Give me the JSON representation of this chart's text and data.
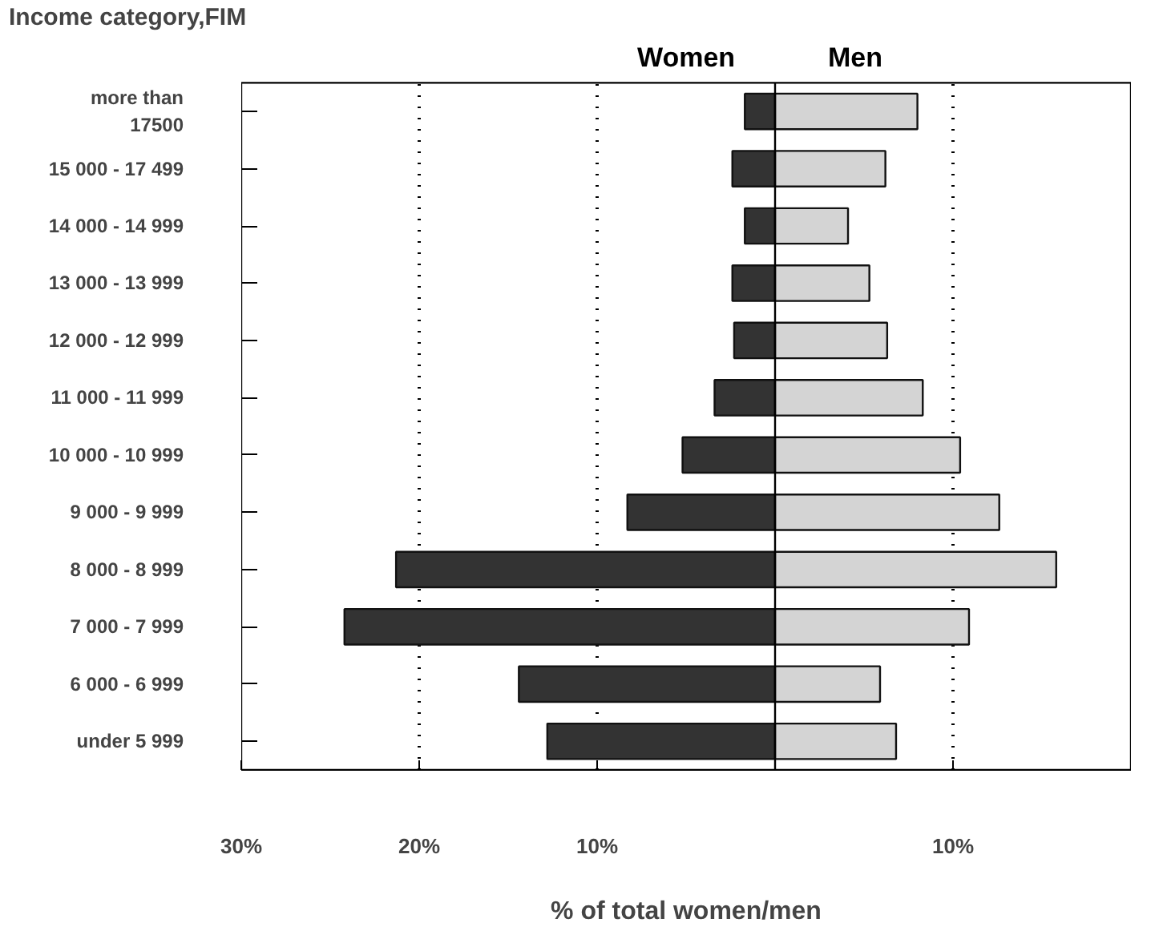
{
  "chart_data": {
    "type": "bar",
    "stacked": true,
    "orientation": "horizontal",
    "ylabel": "Income category,FIM",
    "xlabel": "% of total women/men",
    "categories": [
      "more than\n17500",
      "15 000 - 17 499",
      "14 000 - 14 999",
      "13 000 - 13 999",
      "12 000 - 12 999",
      "11 000 - 11 999",
      "10 000 - 10 999",
      "9 000 - 9 999",
      "8 000 - 8 999",
      "7 000 - 7 999",
      "6 000 - 6 999",
      "under 5 999"
    ],
    "series": [
      {
        "name": "Women",
        "color": "#333333",
        "values": [
          -1.7,
          -2.4,
          -1.7,
          -2.4,
          -2.3,
          -3.4,
          -5.2,
          -8.3,
          -21.3,
          -24.2,
          -14.4,
          -12.8
        ]
      },
      {
        "name": "Men",
        "color": "#d4d4d4",
        "values": [
          8.0,
          6.2,
          4.1,
          5.3,
          6.3,
          8.3,
          10.4,
          12.6,
          15.8,
          10.9,
          5.9,
          6.8
        ]
      }
    ],
    "xlim": [
      -30,
      20
    ],
    "xticks": [
      {
        "value": -30,
        "label": "30%"
      },
      {
        "value": -20,
        "label": "20%"
      },
      {
        "value": -10,
        "label": "10%"
      },
      {
        "value": 10,
        "label": "10%"
      }
    ],
    "grid": "x",
    "ref_lines": [
      {
        "axis": "x",
        "value": 0,
        "label": null,
        "color": "#000000",
        "line_style": "solid"
      }
    ]
  }
}
